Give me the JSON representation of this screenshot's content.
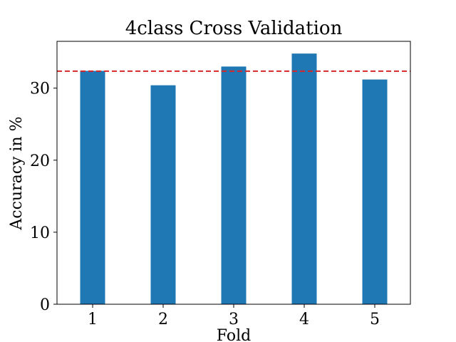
{
  "chart_data": {
    "type": "bar",
    "title": "4class Cross Validation",
    "xlabel": "Fold",
    "ylabel": "Accuracy in %",
    "categories": [
      "1",
      "2",
      "3",
      "4",
      "5"
    ],
    "values": [
      32.4,
      30.4,
      33.0,
      34.8,
      31.2
    ],
    "ylim": [
      0,
      36.5
    ],
    "yticks": [
      0,
      10,
      20,
      30
    ],
    "reference_line": {
      "value": 32.36,
      "style": "dashed"
    },
    "bar_color": "#1f77b4",
    "reference_color": "#d62728"
  }
}
